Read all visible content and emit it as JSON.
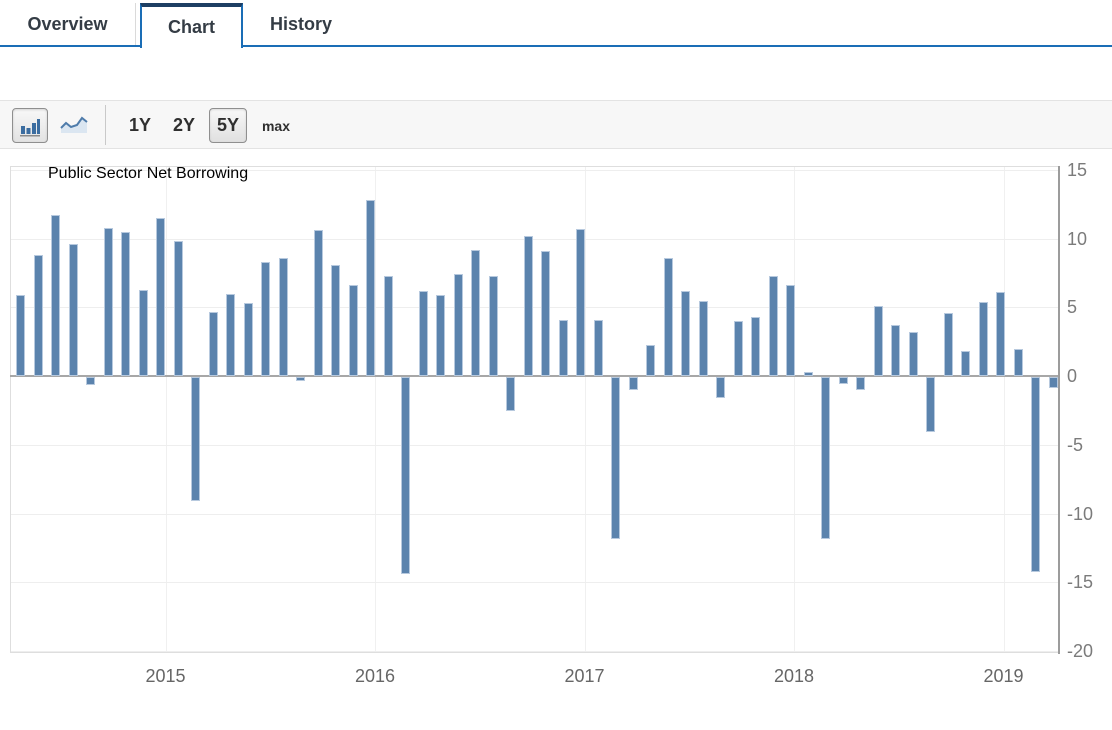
{
  "tabs": {
    "items": [
      {
        "label": "Overview",
        "active": false
      },
      {
        "label": "Chart",
        "active": true
      },
      {
        "label": "History",
        "active": false
      }
    ]
  },
  "toolbar": {
    "chart_type_buttons": [
      {
        "icon": "bar-chart-icon",
        "selected": true
      },
      {
        "icon": "line-chart-icon",
        "selected": false
      }
    ],
    "range_buttons": [
      {
        "label": "1Y",
        "selected": false
      },
      {
        "label": "2Y",
        "selected": false
      },
      {
        "label": "5Y",
        "selected": true
      },
      {
        "label": "max",
        "selected": false
      }
    ]
  },
  "chart_data": {
    "type": "bar",
    "title": "Public Sector Net Borrowing",
    "values": [
      5.9,
      8.8,
      11.7,
      9.6,
      -0.6,
      10.8,
      10.5,
      6.3,
      11.5,
      9.8,
      -9.0,
      4.7,
      6.0,
      5.3,
      8.3,
      8.6,
      -0.3,
      10.6,
      8.1,
      6.6,
      12.8,
      7.3,
      -14.3,
      6.2,
      5.9,
      7.4,
      9.2,
      7.3,
      -2.5,
      10.2,
      9.1,
      4.1,
      10.7,
      4.1,
      -11.8,
      -0.9,
      2.3,
      8.6,
      6.2,
      5.5,
      -1.5,
      4.0,
      4.3,
      7.3,
      6.6,
      0.3,
      -11.8,
      -0.5,
      -0.9,
      5.1,
      3.7,
      3.2,
      -4.0,
      4.6,
      1.8,
      5.4,
      6.1,
      2.0,
      -14.2,
      -0.8
    ],
    "x_tick_labels": [
      "2015",
      "2016",
      "2017",
      "2018",
      "2019"
    ],
    "y_tick_labels": [
      "15",
      "10",
      "5",
      "0",
      "-5",
      "-10",
      "-15",
      "-20"
    ],
    "y_ticks": [
      15,
      10,
      5,
      0,
      -5,
      -10,
      -15,
      -20
    ],
    "ylim": [
      -20,
      15
    ],
    "xlabel": "",
    "ylabel": "",
    "grid": true,
    "legend_position": "none",
    "bar_color": "#5b83ad",
    "bar_border_color": "#b7c9de"
  },
  "theme": {
    "accent_blue": "#1a6db6",
    "tab_top_border": "#1d3e63",
    "axis_label_color": "#7b7b7b",
    "zero_line_color": "#a7a7a7"
  }
}
